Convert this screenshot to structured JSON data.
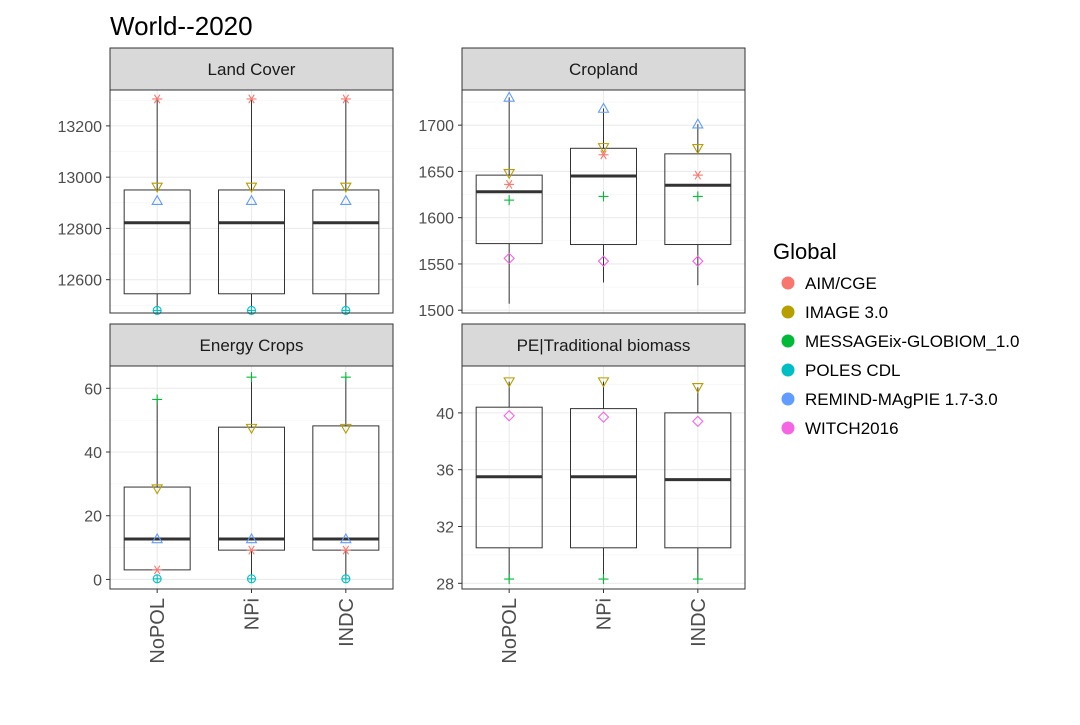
{
  "chart_data": {
    "type": "boxplot",
    "title": "World--2020",
    "categories": [
      "NoPOL",
      "NPi",
      "INDC"
    ],
    "legend": {
      "title": "Global",
      "position": "right",
      "entries": [
        {
          "name": "AIM/CGE",
          "color": "#F8766D",
          "shape": "asterisk"
        },
        {
          "name": "IMAGE 3.0",
          "color": "#B79F00",
          "shape": "triangle-down"
        },
        {
          "name": "MESSAGEix-GLOBIOM_1.0",
          "color": "#00BA38",
          "shape": "plus"
        },
        {
          "name": "POLES CDL",
          "color": "#00BFC4",
          "shape": "circle-plus"
        },
        {
          "name": "REMIND-MAgPIE 1.7-3.0",
          "color": "#619CFF",
          "shape": "triangle-up"
        },
        {
          "name": "WITCH2016",
          "color": "#F564E3",
          "shape": "diamond"
        }
      ]
    },
    "panels": [
      {
        "title": "Land Cover",
        "ylim": [
          12470,
          13340
        ],
        "yticks": [
          12600,
          12800,
          13000,
          13200
        ],
        "boxes": [
          {
            "category": "NoPOL",
            "whisker_low": 12480,
            "q1": 12545,
            "median": 12822,
            "q3": 12950,
            "whisker_high": 13305
          },
          {
            "category": "NPi",
            "whisker_low": 12480,
            "q1": 12545,
            "median": 12822,
            "q3": 12950,
            "whisker_high": 13305
          },
          {
            "category": "INDC",
            "whisker_low": 12480,
            "q1": 12545,
            "median": 12822,
            "q3": 12950,
            "whisker_high": 13305
          }
        ],
        "points": [
          {
            "model": "AIM/CGE",
            "values": [
              13305,
              13305,
              13305
            ]
          },
          {
            "model": "IMAGE 3.0",
            "values": [
              12962,
              12962,
              12962
            ]
          },
          {
            "model": "REMIND-MAgPIE 1.7-3.0",
            "values": [
              12908,
              12908,
              12908
            ]
          },
          {
            "model": "POLES CDL",
            "values": [
              12480,
              12480,
              12480
            ]
          }
        ]
      },
      {
        "title": "Cropland",
        "ylim": [
          1497,
          1738
        ],
        "yticks": [
          1500,
          1550,
          1600,
          1650,
          1700
        ],
        "boxes": [
          {
            "category": "NoPOL",
            "whisker_low": 1507,
            "q1": 1572,
            "median": 1628,
            "q3": 1646,
            "whisker_high": 1730
          },
          {
            "category": "NPi",
            "whisker_low": 1530,
            "q1": 1571,
            "median": 1645,
            "q3": 1675,
            "whisker_high": 1718
          },
          {
            "category": "INDC",
            "whisker_low": 1527,
            "q1": 1571,
            "median": 1635,
            "q3": 1669,
            "whisker_high": 1701
          }
        ],
        "points": [
          {
            "model": "REMIND-MAgPIE 1.7-3.0",
            "values": [
              1730,
              1718,
              1701
            ]
          },
          {
            "model": "IMAGE 3.0",
            "values": [
              1648,
              1676,
              1675
            ]
          },
          {
            "model": "AIM/CGE",
            "values": [
              1636,
              1668,
              1646
            ]
          },
          {
            "model": "MESSAGEix-GLOBIOM_1.0",
            "values": [
              1619,
              1623,
              1623
            ]
          },
          {
            "model": "WITCH2016",
            "values": [
              1556,
              1553,
              1553
            ]
          }
        ]
      },
      {
        "title": "Energy Crops",
        "ylim": [
          -3,
          67
        ],
        "yticks": [
          0,
          20,
          40,
          60
        ],
        "boxes": [
          {
            "category": "NoPOL",
            "whisker_low": 3,
            "q1": 3,
            "median": 12.7,
            "q3": 29,
            "whisker_high": 56.5
          },
          {
            "category": "NPi",
            "whisker_low": 0,
            "q1": 9.2,
            "median": 12.7,
            "q3": 47.8,
            "whisker_high": 63.5
          },
          {
            "category": "INDC",
            "whisker_low": 0,
            "q1": 9.2,
            "median": 12.7,
            "q3": 48.2,
            "whisker_high": 63.5
          }
        ],
        "points": [
          {
            "model": "MESSAGEix-GLOBIOM_1.0",
            "values": [
              56.5,
              63.5,
              63.5
            ]
          },
          {
            "model": "IMAGE 3.0",
            "values": [
              28.5,
              47.5,
              47.5
            ]
          },
          {
            "model": "REMIND-MAgPIE 1.7-3.0",
            "values": [
              12.7,
              12.7,
              12.7
            ]
          },
          {
            "model": "AIM/CGE",
            "values": [
              3,
              9.2,
              9.2
            ]
          },
          {
            "model": "POLES CDL",
            "values": [
              0.2,
              0.2,
              0.2
            ]
          }
        ]
      },
      {
        "title": "PE|Traditional biomass",
        "ylim": [
          27.6,
          43.3
        ],
        "yticks": [
          28,
          32,
          36,
          40
        ],
        "boxes": [
          {
            "category": "NoPOL",
            "whisker_low": 28.3,
            "q1": 30.5,
            "median": 35.5,
            "q3": 40.4,
            "whisker_high": 42.2
          },
          {
            "category": "NPi",
            "whisker_low": 28.3,
            "q1": 30.5,
            "median": 35.5,
            "q3": 40.3,
            "whisker_high": 42.2
          },
          {
            "category": "INDC",
            "whisker_low": 28.3,
            "q1": 30.5,
            "median": 35.3,
            "q3": 40,
            "whisker_high": 41.8
          }
        ],
        "points": [
          {
            "model": "IMAGE 3.0",
            "values": [
              42.2,
              42.2,
              41.8
            ]
          },
          {
            "model": "WITCH2016",
            "values": [
              39.8,
              39.7,
              39.4
            ]
          },
          {
            "model": "MESSAGEix-GLOBIOM_1.0",
            "values": [
              28.3,
              28.3,
              28.3
            ]
          }
        ]
      }
    ]
  }
}
